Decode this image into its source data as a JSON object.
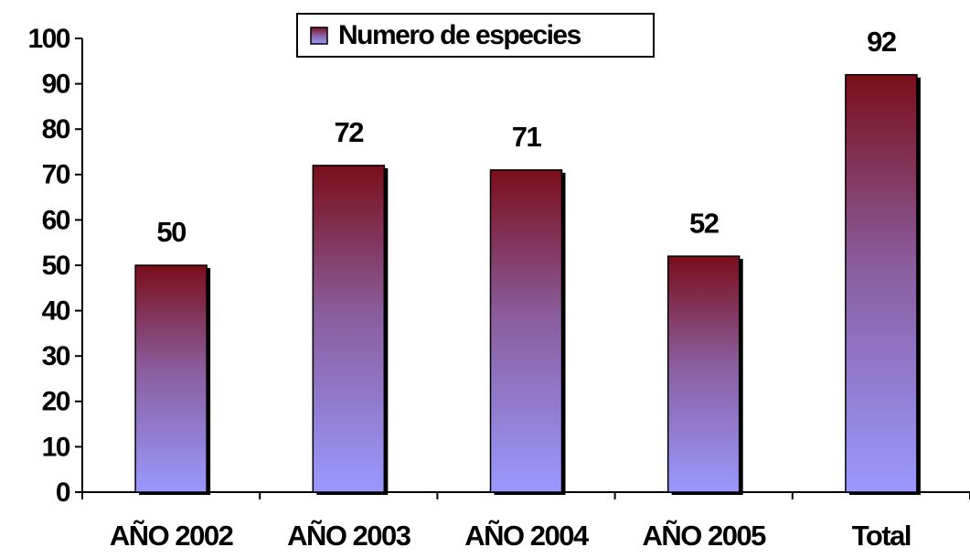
{
  "chart_data": {
    "type": "bar",
    "categories": [
      "AÑO 2002",
      "AÑO 2003",
      "AÑO 2004",
      "AÑO 2005",
      "Total"
    ],
    "series": [
      {
        "name": "Numero de especies",
        "gradient": [
          "#7a0e1a",
          "#9999ff"
        ],
        "values": [
          50,
          72,
          71,
          52,
          92
        ]
      }
    ],
    "ylim": [
      0,
      100
    ],
    "yticks": [
      0,
      10,
      20,
      30,
      40,
      50,
      60,
      70,
      80,
      90,
      100
    ],
    "legend": "top",
    "data_labels": true
  }
}
